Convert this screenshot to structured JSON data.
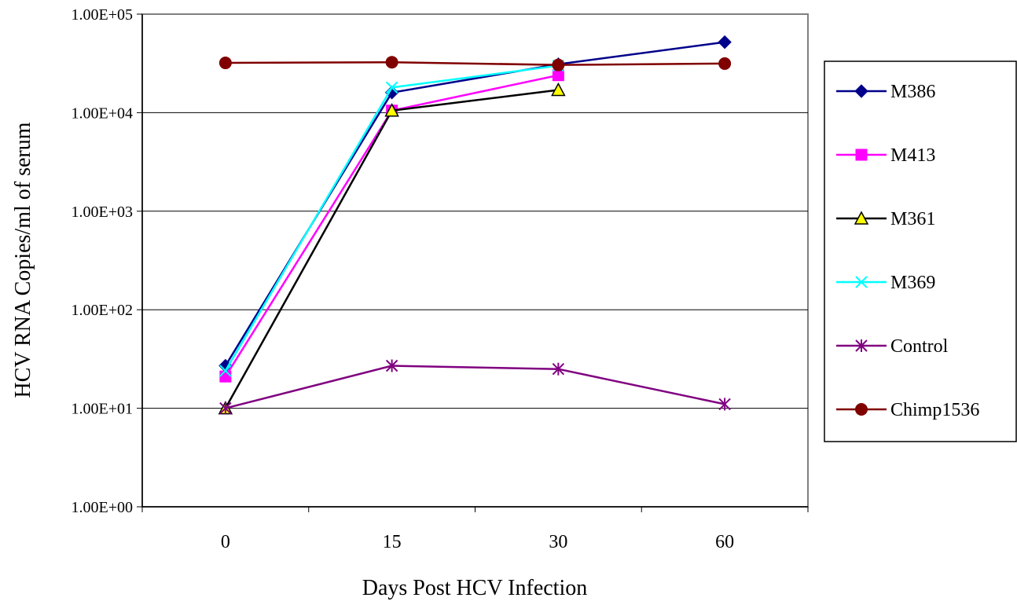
{
  "chart_data": {
    "type": "line",
    "xlabel": "Days Post HCV Infection",
    "ylabel": "HCV RNA Copies/ml of  serum",
    "y_scale": "log",
    "ylim": [
      1,
      100000
    ],
    "y_ticks": [
      1,
      10,
      100,
      1000,
      10000,
      100000
    ],
    "y_tick_labels": [
      "1.00E+00",
      "1.00E+01",
      "1.00E+02",
      "1.00E+03",
      "1.00E+04",
      "1.00E+05"
    ],
    "categories": [
      "0",
      "15",
      "30",
      "60"
    ],
    "grid": "horizontal",
    "legend_position": "right",
    "series": [
      {
        "name": "M386",
        "color": "#00008B",
        "marker": "diamond",
        "values": [
          27,
          16000,
          31000,
          52000
        ]
      },
      {
        "name": "M413",
        "color": "#FF00FF",
        "marker": "square",
        "values": [
          21,
          10500,
          24000,
          null
        ]
      },
      {
        "name": "M361",
        "color": "#000000",
        "marker": "triangle",
        "marker_fill": "#FFFF00",
        "values": [
          10,
          10500,
          17000,
          null
        ]
      },
      {
        "name": "M369",
        "color": "#00FFFF",
        "marker": "x",
        "values": [
          24,
          18000,
          30000,
          null
        ]
      },
      {
        "name": "Control",
        "color": "#800080",
        "marker": "star",
        "values": [
          10,
          27,
          25,
          11
        ]
      },
      {
        "name": "Chimp1536",
        "color": "#800000",
        "marker": "circle",
        "values": [
          32000,
          32500,
          30500,
          31500
        ]
      }
    ]
  }
}
